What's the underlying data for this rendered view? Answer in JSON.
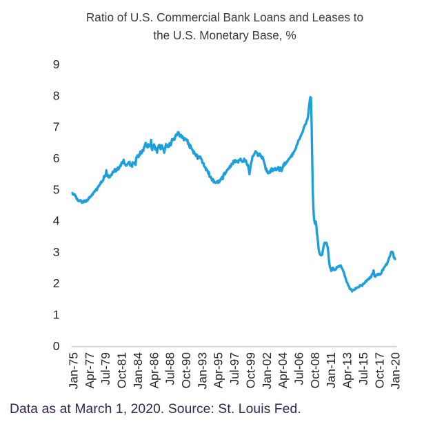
{
  "chart_data": {
    "type": "line",
    "title": "Ratio of U.S. Commercial Bank Loans and Leases to the U.S. Monetary Base, %",
    "title_lines": [
      "Ratio of U.S. Commercial Bank Loans and Leases to",
      "the U.S. Monetary Base, %"
    ],
    "xlabel": "",
    "ylabel": "",
    "ylim": [
      0,
      9
    ],
    "y_ticks": [
      0,
      1,
      2,
      3,
      4,
      5,
      6,
      7,
      8,
      9
    ],
    "x_tick_labels": [
      "Jan-75",
      "Apr-77",
      "Jul-79",
      "Oct-81",
      "Jan-84",
      "Apr-86",
      "Jul-88",
      "Oct-90",
      "Jan-93",
      "Apr-95",
      "Jul-97",
      "Oct-99",
      "Jan-02",
      "Apr-04",
      "Jul-06",
      "Oct-08",
      "Jan-11",
      "Apr-13",
      "Jul-15",
      "Oct-17",
      "Jan-20"
    ],
    "x_tick_months": [
      0,
      27,
      54,
      81,
      108,
      135,
      162,
      189,
      216,
      243,
      270,
      297,
      324,
      351,
      378,
      405,
      432,
      459,
      486,
      513,
      540
    ],
    "grid": false,
    "legend": "none",
    "series": [
      {
        "name": "Ratio of U.S. commercial bank loans and leases to the U.S. monetary base, %",
        "start": "Jan-75",
        "frequency": "monthly",
        "values": [
          4.887,
          4.838,
          4.853,
          4.828,
          4.839,
          4.792,
          4.774,
          4.699,
          4.708,
          4.645,
          4.63,
          4.648,
          4.627,
          4.659,
          4.653,
          4.611,
          4.575,
          4.612,
          4.622,
          4.587,
          4.649,
          4.621,
          4.607,
          4.608,
          4.672,
          4.639,
          4.665,
          4.692,
          4.748,
          4.735,
          4.772,
          4.782,
          4.795,
          4.848,
          4.834,
          4.886,
          4.918,
          4.924,
          4.966,
          4.969,
          5.016,
          4.972,
          5.06,
          5.085,
          5.091,
          5.143,
          5.146,
          5.197,
          5.247,
          5.223,
          5.265,
          5.274,
          5.314,
          5.421,
          5.395,
          5.452,
          5.471,
          5.613,
          5.443,
          5.418,
          5.459,
          5.38,
          5.385,
          5.395,
          5.446,
          5.472,
          5.464,
          5.519,
          5.57,
          5.558,
          5.565,
          5.652,
          5.611,
          5.572,
          5.653,
          5.62,
          5.701,
          5.638,
          5.659,
          5.7,
          5.764,
          5.747,
          5.828,
          5.872,
          5.835,
          5.878,
          5.95,
          5.838,
          5.809,
          5.789,
          5.758,
          5.766,
          5.808,
          5.818,
          5.861,
          5.877,
          5.882,
          5.761,
          5.795,
          5.78,
          5.724,
          5.867,
          5.843,
          5.853,
          5.824,
          5.868,
          5.783,
          6.017,
          6.019,
          6.088,
          6.07,
          6.036,
          6.119,
          6.095,
          6.211,
          6.186,
          6.154,
          6.246,
          6.249,
          6.232,
          6.347,
          6.355,
          6.459,
          6.486,
          6.393,
          6.402,
          6.342,
          6.442,
          6.372,
          6.4,
          6.381,
          6.437,
          6.584,
          6.302,
          6.258,
          6.397,
          6.378,
          6.442,
          6.371,
          6.277,
          6.32,
          6.256,
          6.174,
          6.331,
          6.33,
          6.416,
          6.425,
          6.387,
          6.286,
          6.339,
          6.411,
          6.345,
          6.295,
          6.265,
          6.171,
          6.279,
          6.357,
          6.449,
          6.373,
          6.368,
          6.361,
          6.432,
          6.365,
          6.482,
          6.462,
          6.411,
          6.5,
          6.603,
          6.601,
          6.58,
          6.626,
          6.588,
          6.646,
          6.73,
          6.754,
          6.731,
          6.775,
          6.831,
          6.826,
          6.751,
          6.695,
          6.694,
          6.748,
          6.661,
          6.708,
          6.646,
          6.666,
          6.573,
          6.604,
          6.633,
          6.61,
          6.593,
          6.556,
          6.582,
          6.451,
          6.48,
          6.388,
          6.322,
          6.417,
          6.314,
          6.307,
          6.272,
          6.244,
          6.158,
          6.209,
          6.136,
          6.144,
          6.072,
          6.098,
          6.112,
          5.977,
          6.061,
          6.014,
          6.026,
          6.053,
          6.019,
          5.973,
          5.948,
          5.846,
          5.837,
          5.836,
          5.735,
          5.72,
          5.706,
          5.617,
          5.655,
          5.597,
          5.595,
          5.5,
          5.545,
          5.403,
          5.406,
          5.4,
          5.359,
          5.293,
          5.284,
          5.325,
          5.225,
          5.258,
          5.235,
          5.209,
          5.22,
          5.221,
          5.267,
          5.21,
          5.282,
          5.229,
          5.264,
          5.317,
          5.318,
          5.375,
          5.401,
          5.328,
          5.435,
          5.508,
          5.534,
          5.48,
          5.543,
          5.553,
          5.611,
          5.619,
          5.661,
          5.664,
          5.681,
          5.749,
          5.72,
          5.756,
          5.824,
          5.82,
          5.808,
          5.914,
          5.862,
          5.93,
          5.938,
          5.871,
          5.908,
          5.895,
          5.914,
          5.861,
          5.927,
          5.951,
          5.939,
          5.982,
          5.927,
          5.909,
          5.88,
          5.897,
          5.886,
          5.982,
          5.937,
          5.904,
          5.929,
          5.844,
          5.781,
          5.79,
          5.713,
          5.613,
          5.488,
          5.621,
          5.786,
          5.863,
          5.931,
          6.062,
          6.068,
          6.084,
          6.138,
          6.169,
          6.22,
          6.204,
          6.183,
          6.153,
          6.072,
          6.104,
          6.092,
          6.147,
          6.106,
          6.047,
          6.063,
          5.99,
          6.036,
          5.968,
          5.909,
          5.822,
          5.771,
          5.643,
          5.668,
          5.568,
          5.588,
          5.513,
          5.54,
          5.55,
          5.53,
          5.614,
          5.566,
          5.674,
          5.636,
          5.588,
          5.655,
          5.613,
          5.628,
          5.68,
          5.615,
          5.612,
          5.649,
          5.671,
          5.716,
          5.669,
          5.592,
          5.68,
          5.7,
          5.685,
          5.586,
          5.693,
          5.704,
          5.806,
          5.76,
          5.857,
          5.801,
          5.826,
          5.859,
          5.9,
          5.902,
          5.959,
          5.97,
          5.993,
          6.031,
          6.03,
          6.09,
          6.058,
          6.157,
          6.128,
          6.188,
          6.22,
          6.251,
          6.287,
          6.33,
          6.424,
          6.44,
          6.505,
          6.576,
          6.591,
          6.611,
          6.669,
          6.718,
          6.758,
          6.795,
          6.833,
          6.898,
          6.982,
          7.015,
          7.072,
          7.083,
          7.13,
          7.209,
          7.23,
          7.325,
          7.503,
          7.682,
          7.85,
          7.95,
          7.93,
          7.2,
          6.1,
          5.0,
          4.45,
          4.1,
          3.97,
          3.9,
          3.98,
          3.85,
          3.6,
          3.47,
          3.27,
          3.08,
          2.99,
          2.928,
          2.902,
          2.897,
          2.9,
          2.929,
          3.06,
          3.165,
          3.239,
          3.301,
          3.293,
          3.276,
          3.297,
          3.217,
          3.156,
          3.007,
          2.769,
          2.609,
          2.509,
          2.487,
          2.396,
          2.424,
          2.491,
          2.495,
          2.429,
          2.438,
          2.424,
          2.452,
          2.449,
          2.512,
          2.527,
          2.52,
          2.542,
          2.533,
          2.562,
          2.538,
          2.571,
          2.52,
          2.48,
          2.447,
          2.394,
          2.356,
          2.29,
          2.217,
          2.176,
          2.098,
          2.044,
          2.016,
          1.961,
          1.918,
          1.892,
          1.825,
          1.807,
          1.817,
          1.788,
          1.739,
          1.786,
          1.789,
          1.784,
          1.789,
          1.82,
          1.853,
          1.831,
          1.858,
          1.873,
          1.873,
          1.874,
          1.886,
          1.938,
          1.946,
          1.935,
          1.934,
          1.92,
          1.977,
          1.974,
          2.004,
          2.004,
          2.04,
          2.076,
          2.059,
          2.103,
          2.126,
          2.119,
          2.134,
          2.179,
          2.16,
          2.209,
          2.196,
          2.273,
          2.307,
          2.316,
          2.414,
          2.275,
          2.22,
          2.211,
          2.268,
          2.255,
          2.273,
          2.3,
          2.268,
          2.305,
          2.3,
          2.278,
          2.302,
          2.317,
          2.388,
          2.437,
          2.425,
          2.491,
          2.516,
          2.532,
          2.569,
          2.61,
          2.595,
          2.643,
          2.703,
          2.744,
          2.822,
          2.855,
          2.895,
          2.991,
          3.008,
          3.002,
          2.997,
          2.94,
          2.82,
          2.821,
          2.775
        ]
      }
    ],
    "line_color": "#1c9fda",
    "axis_line_color": "#c9c9c9",
    "tick_label_color": "#26222c",
    "title_color": "#3a3a39"
  },
  "footer": {
    "text": "Data as at March 1, 2020. Source: St. Louis Fed.",
    "color": "#392349"
  }
}
